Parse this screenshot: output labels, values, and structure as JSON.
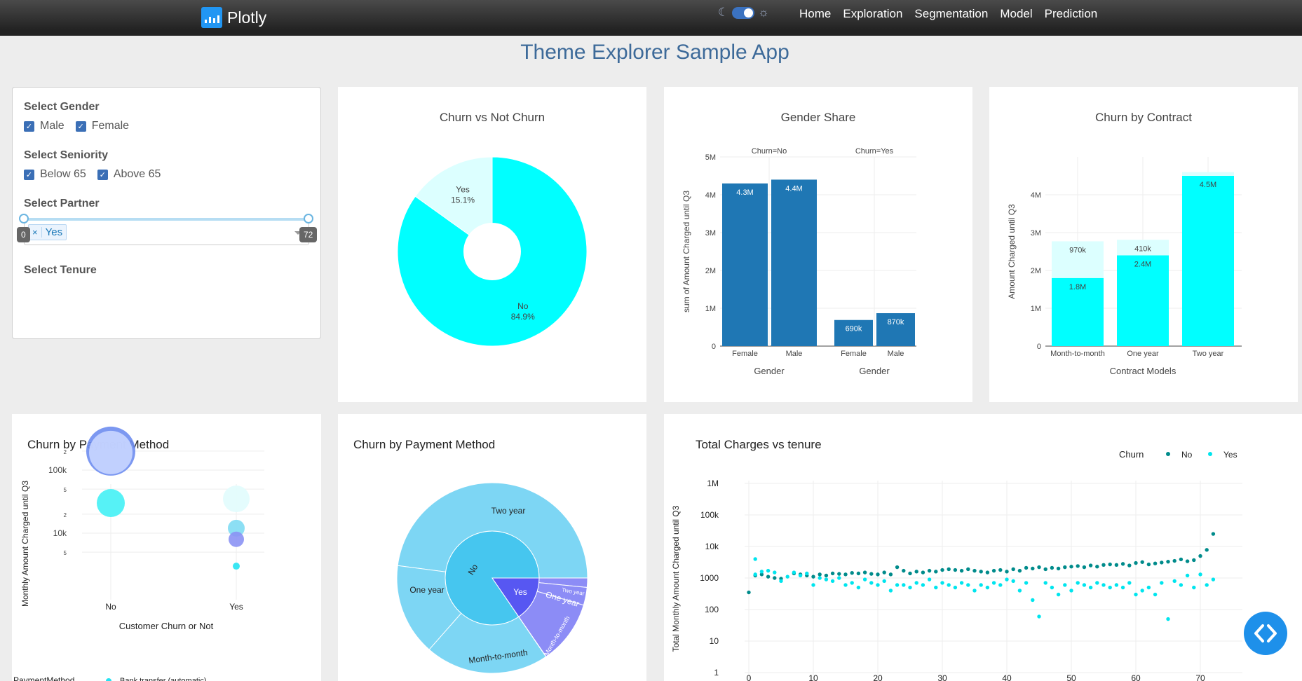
{
  "navbar": {
    "brand": "Plotly",
    "links": [
      "Home",
      "Exploration",
      "Segmentation",
      "Model",
      "Prediction"
    ]
  },
  "app_title": "Theme Explorer Sample App",
  "filters": {
    "gender": {
      "label": "Select Gender",
      "options": [
        "Male",
        "Female"
      ]
    },
    "seniority": {
      "label": "Select Seniority",
      "options": [
        "Below 65",
        "Above 65"
      ]
    },
    "partner": {
      "label": "Select Partner",
      "value": "Yes",
      "remove": "×"
    },
    "tenure": {
      "label": "Select Tenure",
      "min": "0",
      "max": "72"
    }
  },
  "colors": {
    "accent": "#1f77b4",
    "cyan": "#00ffff",
    "light_cyan": "#dcffff",
    "teal": "#008b8b",
    "nav_bg": "#2b2b2b",
    "title": "#3d6a99"
  },
  "chart_data": [
    {
      "type": "pie",
      "title": "Churn vs Not Churn",
      "hole": 0.3,
      "labels": [
        "Yes",
        "No"
      ],
      "values": [
        15.1,
        84.9
      ],
      "text": [
        "15.1%",
        "84.9%"
      ]
    },
    {
      "type": "bar",
      "title": "Gender Share",
      "facets": [
        "Churn=No",
        "Churn=Yes"
      ],
      "categories": [
        "Female",
        "Male",
        "Female",
        "Male"
      ],
      "values": [
        4300000,
        4400000,
        690000,
        870000
      ],
      "data_labels": [
        "4.3M",
        "4.4M",
        "690k",
        "870k"
      ],
      "ylabel": "sum of Amount Charged until Q3",
      "xlabel": "Gender",
      "yticks": [
        "0",
        "1M",
        "2M",
        "3M",
        "4M",
        "5M"
      ],
      "ylim": [
        0,
        5000000
      ]
    },
    {
      "type": "bar",
      "title": "Churn by Contract",
      "categories": [
        "Month-to-month",
        "One year",
        "Two year"
      ],
      "series": [
        {
          "values": [
            1800000,
            2400000,
            4500000
          ],
          "labels": [
            "1.8M",
            "2.4M",
            "4.5M"
          ]
        },
        {
          "values": [
            970000,
            410000,
            100000
          ],
          "labels": [
            "970k",
            "410k",
            ""
          ]
        }
      ],
      "ylabel": "Amount Charged until Q3",
      "xlabel": "Contract Models",
      "yticks": [
        "0",
        "1M",
        "2M",
        "3M",
        "4M"
      ],
      "ylim": [
        0,
        4900000
      ]
    },
    {
      "type": "scatter",
      "title": "Churn by Payment Method",
      "xlabel": "Customer Churn or Not",
      "ylabel": "Monthly Amount Charged until Q3",
      "categories": [
        "No",
        "Yes"
      ],
      "yticks": [
        "5",
        "10k",
        "2",
        "5",
        "100k",
        "2"
      ],
      "log_y": true,
      "bubbles": [
        {
          "x": "No",
          "y": 200000,
          "size": 70
        },
        {
          "x": "No",
          "y": 190000,
          "size": 62
        },
        {
          "x": "No",
          "y": 30000,
          "size": 40
        },
        {
          "x": "Yes",
          "y": 35000,
          "size": 38
        },
        {
          "x": "Yes",
          "y": 12000,
          "size": 24
        },
        {
          "x": "Yes",
          "y": 8000,
          "size": 22
        },
        {
          "x": "Yes",
          "y": 3000,
          "size": 10
        }
      ],
      "legend_title": "PaymentMethod",
      "legend_first_entry": "Bank transfer (automatic)"
    },
    {
      "type": "pie",
      "subtype": "sunburst",
      "title": "Churn by Payment Method",
      "inner": [
        {
          "label": "No",
          "share": 0.735
        },
        {
          "label": "Yes",
          "share": 0.265
        }
      ],
      "outer": [
        {
          "label": "Two year",
          "parent": "No"
        },
        {
          "label": "One year",
          "parent": "No"
        },
        {
          "label": "Month-to-month",
          "parent": "No"
        },
        {
          "label": "Two year",
          "parent": "Yes"
        },
        {
          "label": "One year",
          "parent": "Yes"
        },
        {
          "label": "Month-to-month",
          "parent": "Yes"
        }
      ]
    },
    {
      "type": "scatter",
      "title": "Total Charges vs tenure",
      "ylabel": "Total Monthly Amount Charged until Q3",
      "log_y": true,
      "yticks": [
        "1",
        "10",
        "100",
        "1000",
        "10k",
        "100k",
        "1M"
      ],
      "xticks": [
        "0",
        "10",
        "20",
        "30",
        "40",
        "50",
        "60",
        "70"
      ],
      "legend_title": "Churn",
      "series": [
        {
          "name": "No",
          "color": "#008b8b",
          "x": [
            0,
            1,
            2,
            3,
            4,
            5,
            7,
            8,
            9,
            10,
            11,
            12,
            13,
            14,
            15,
            16,
            17,
            18,
            19,
            20,
            21,
            22,
            23,
            24,
            25,
            26,
            27,
            28,
            29,
            30,
            31,
            32,
            33,
            34,
            35,
            36,
            37,
            38,
            39,
            40,
            41,
            42,
            43,
            44,
            45,
            46,
            47,
            48,
            49,
            50,
            51,
            52,
            53,
            54,
            55,
            56,
            57,
            58,
            59,
            60,
            61,
            62,
            63,
            64,
            65,
            66,
            67,
            68,
            69,
            70,
            71,
            72
          ],
          "y": [
            350,
            1200,
            1300,
            1100,
            1000,
            950,
            1400,
            1300,
            1200,
            1100,
            1300,
            1200,
            1400,
            1350,
            1300,
            1450,
            1400,
            1500,
            1350,
            1300,
            1500,
            1300,
            2200,
            1700,
            1400,
            1600,
            1500,
            1700,
            1600,
            1800,
            1900,
            1800,
            1700,
            1900,
            1700,
            1600,
            1500,
            1700,
            1800,
            1600,
            1900,
            1700,
            2100,
            2000,
            2200,
            1900,
            2100,
            2000,
            2200,
            2300,
            2400,
            2200,
            2500,
            2300,
            2600,
            2700,
            2600,
            2800,
            2500,
            3000,
            3200,
            2700,
            2900,
            3100,
            3300,
            3500,
            3900,
            3400,
            3700,
            5000,
            7800,
            25000
          ]
        },
        {
          "name": "Yes",
          "color": "#00e5ee",
          "x": [
            1,
            1,
            2,
            3,
            4,
            5,
            6,
            7,
            8,
            9,
            10,
            11,
            12,
            13,
            14,
            15,
            16,
            17,
            18,
            19,
            20,
            21,
            22,
            23,
            24,
            25,
            26,
            27,
            28,
            29,
            30,
            31,
            32,
            33,
            34,
            35,
            36,
            37,
            38,
            39,
            40,
            41,
            42,
            43,
            44,
            45,
            46,
            47,
            48,
            49,
            50,
            51,
            52,
            53,
            54,
            55,
            56,
            57,
            58,
            59,
            60,
            61,
            62,
            63,
            64,
            65,
            66,
            67,
            68,
            69,
            70,
            71,
            72
          ],
          "y": [
            4000,
            1300,
            1600,
            1700,
            1500,
            800,
            1100,
            1500,
            1200,
            1400,
            600,
            1000,
            900,
            800,
            1000,
            600,
            700,
            500,
            900,
            700,
            600,
            800,
            400,
            600,
            600,
            500,
            700,
            600,
            900,
            500,
            700,
            600,
            500,
            700,
            600,
            400,
            600,
            500,
            700,
            600,
            900,
            800,
            400,
            700,
            200,
            60,
            700,
            500,
            300,
            600,
            400,
            700,
            600,
            500,
            700,
            600,
            500,
            600,
            500,
            700,
            300,
            400,
            500,
            300,
            700,
            50,
            800,
            600,
            1200,
            500,
            1300,
            600,
            900
          ]
        }
      ]
    }
  ]
}
